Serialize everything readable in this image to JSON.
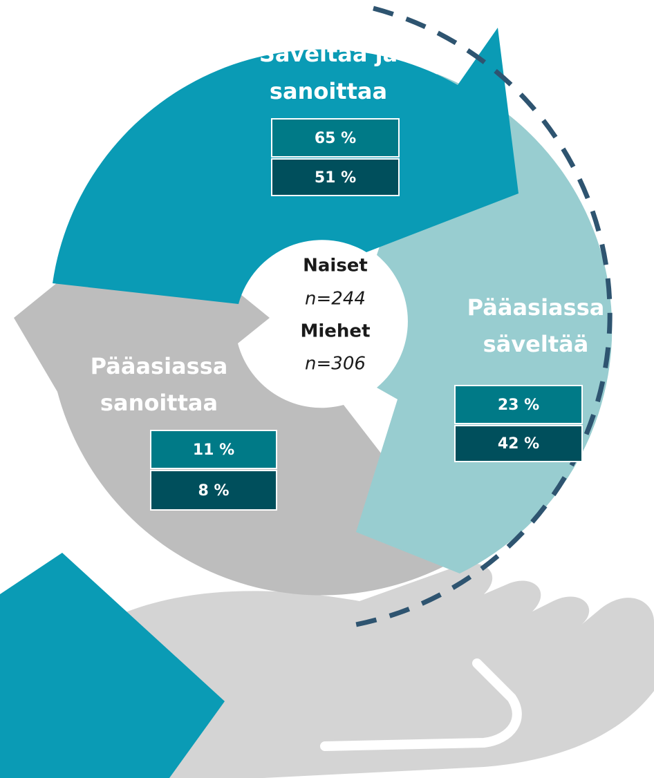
{
  "center": {
    "women": "Naiset",
    "women_n": "n=244",
    "men": "Miehet",
    "men_n": "n=306"
  },
  "segments": [
    {
      "label_lines": [
        "Säveltää ja",
        "sanoittaa"
      ],
      "women": "65 %",
      "men": "51 %"
    },
    {
      "label_lines": [
        "Pääasiassa",
        "säveltää"
      ],
      "women": "23 %",
      "men": "42 %"
    },
    {
      "label_lines": [
        "Pääasiassa",
        "sanoittaa"
      ],
      "women": "11 %",
      "men": "8 %"
    }
  ]
}
